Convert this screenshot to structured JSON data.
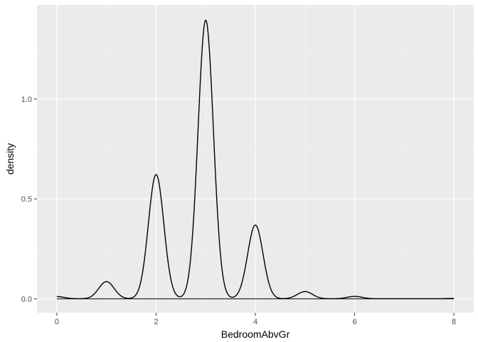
{
  "chart_data": {
    "type": "line",
    "geom": "density",
    "title": "",
    "xlabel": "BedroomAbvGr",
    "ylabel": "density",
    "xlim": [
      -0.4,
      8.4
    ],
    "ylim": [
      -0.07,
      1.47
    ],
    "x_ticks": [
      0,
      2,
      4,
      6,
      8
    ],
    "y_ticks": [
      0.0,
      0.5,
      1.0
    ],
    "x_tick_labels": [
      "0",
      "2",
      "4",
      "6",
      "8"
    ],
    "y_tick_labels": [
      "0.0",
      "0.5",
      "1.0"
    ],
    "grid": true,
    "kernel_bandwidth": 0.155,
    "peaks": [
      {
        "x": 0,
        "density": 0.011
      },
      {
        "x": 1,
        "density": 0.086
      },
      {
        "x": 2,
        "density": 0.622
      },
      {
        "x": 3,
        "density": 1.394
      },
      {
        "x": 4,
        "density": 0.369
      },
      {
        "x": 5,
        "density": 0.036
      },
      {
        "x": 6,
        "density": 0.012
      },
      {
        "x": 8,
        "density": 0.002
      }
    ],
    "series": [
      {
        "x": [
          0.0,
          0.25,
          0.5,
          0.75,
          1.0,
          1.25,
          1.5,
          1.75,
          2.0,
          2.25,
          2.5,
          2.75,
          3.0,
          3.25,
          3.5,
          3.75,
          4.0,
          4.25,
          4.5,
          4.75,
          5.0,
          5.25,
          5.5,
          5.75,
          6.0,
          6.25,
          6.5,
          7.0,
          7.5,
          8.0
        ],
        "y": [
          0.011,
          0.003,
          0.004,
          0.024,
          0.086,
          0.024,
          0.008,
          0.169,
          0.622,
          0.17,
          0.012,
          0.379,
          1.394,
          0.38,
          0.007,
          0.101,
          0.369,
          0.101,
          0.005,
          0.01,
          0.036,
          0.01,
          0.001,
          0.003,
          0.012,
          0.003,
          0.0,
          0.0,
          0.0,
          0.002
        ]
      }
    ]
  },
  "colors": {
    "panel_background": "#ebebeb",
    "grid_major": "#ffffff",
    "grid_minor": "#f5f5f5",
    "line": "#000000",
    "tick": "#333333"
  }
}
